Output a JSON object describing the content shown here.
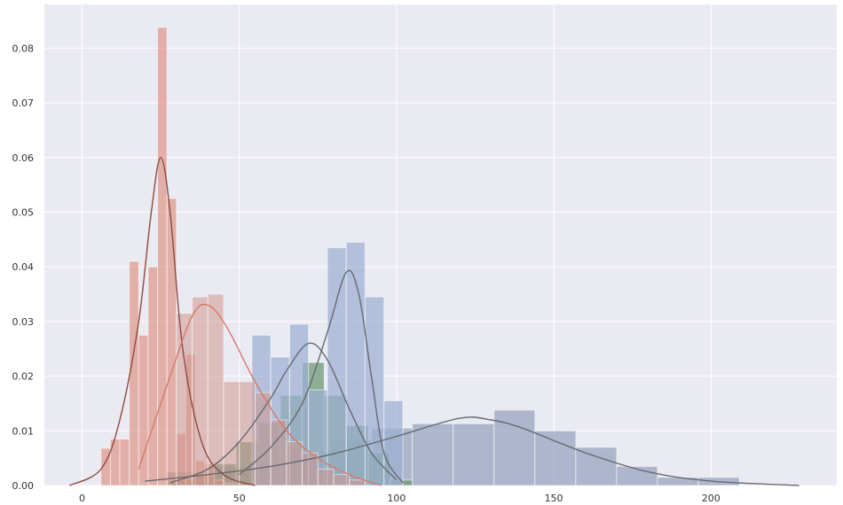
{
  "chart_data": {
    "type": "histogram",
    "title": "",
    "xlabel": "",
    "ylabel": "",
    "xlim": [
      -12,
      240
    ],
    "ylim": [
      0,
      0.088
    ],
    "grid": true,
    "legend": "none",
    "x_ticks": [
      "0",
      "50",
      "100",
      "150",
      "200"
    ],
    "x_tick_values": [
      0,
      50,
      100,
      150,
      200
    ],
    "y_ticks": [
      "0.00",
      "0.01",
      "0.02",
      "0.03",
      "0.04",
      "0.05",
      "0.06",
      "0.07",
      "0.08"
    ],
    "y_tick_values": [
      0,
      0.01,
      0.02,
      0.03,
      0.04,
      0.05,
      0.06,
      0.07,
      0.08
    ],
    "colors": {
      "background": "#eaeaf2",
      "grid": "#ffffff",
      "series_1": "#96a2bd",
      "series_2": "#6f9a78",
      "series_3": "#9cb0d2",
      "series_4": "#dd8a7b",
      "series_5": "#d0978f",
      "kde_dark": "#666a70",
      "kde_brown": "#8e4a40",
      "kde_salmon": "#d57a68"
    },
    "series": [
      {
        "edges": [
          27,
          40,
          53,
          66,
          79,
          92,
          105,
          118,
          131,
          144,
          157,
          170,
          183,
          196
        ],
        "heights": [
          0.0025,
          0.0035,
          0.0045,
          0.0065,
          0.0085,
          0.0105,
          0.0113,
          0.0113,
          0.0138,
          0.01,
          0.007,
          0.0035,
          0.0015,
          0.0015
        ],
        "kde": [
          [
            20,
            0.0008
          ],
          [
            40,
            0.002
          ],
          [
            60,
            0.0035
          ],
          [
            80,
            0.0058
          ],
          [
            100,
            0.009
          ],
          [
            120,
            0.0123
          ],
          [
            130,
            0.012
          ],
          [
            140,
            0.0105
          ],
          [
            160,
            0.006
          ],
          [
            180,
            0.0025
          ],
          [
            200,
            0.0008
          ],
          [
            228,
            0.0
          ]
        ]
      },
      {
        "edges": [
          28,
          35,
          42,
          49,
          56,
          63,
          70,
          77,
          84,
          91,
          98
        ],
        "heights": [
          0.001,
          0.002,
          0.004,
          0.008,
          0.0115,
          0.0165,
          0.0225,
          0.0165,
          0.011,
          0.006,
          0.001
        ],
        "kde": [
          [
            28,
            0.0005
          ],
          [
            40,
            0.003
          ],
          [
            50,
            0.008
          ],
          [
            60,
            0.016
          ],
          [
            65,
            0.021
          ],
          [
            72,
            0.026
          ],
          [
            78,
            0.023
          ],
          [
            85,
            0.014
          ],
          [
            92,
            0.006
          ],
          [
            100,
            0.001
          ]
        ]
      },
      {
        "edges": [
          54,
          60,
          66,
          72,
          78,
          84,
          90,
          96
        ],
        "heights": [
          0.0275,
          0.0235,
          0.0295,
          0.0175,
          0.0435,
          0.0445,
          0.0345,
          0.0155
        ],
        "kde": [
          [
            50,
            0.002
          ],
          [
            60,
            0.007
          ],
          [
            70,
            0.015
          ],
          [
            78,
            0.028
          ],
          [
            84,
            0.039
          ],
          [
            88,
            0.035
          ],
          [
            92,
            0.02
          ],
          [
            96,
            0.006
          ],
          [
            102,
            0.0005
          ]
        ]
      },
      {
        "edges": [
          6,
          9,
          12,
          15,
          18,
          21,
          24,
          27,
          30,
          33,
          36,
          39,
          42,
          45
        ],
        "heights": [
          0.0068,
          0.0085,
          0.0085,
          0.041,
          0.0275,
          0.04,
          0.0838,
          0.0525,
          0.0095,
          0.024,
          0.0045,
          0.004,
          0.001,
          0.0005
        ],
        "kde": [
          [
            -4,
            0.0
          ],
          [
            6,
            0.003
          ],
          [
            12,
            0.012
          ],
          [
            18,
            0.03
          ],
          [
            22,
            0.05
          ],
          [
            25,
            0.06
          ],
          [
            28,
            0.05
          ],
          [
            32,
            0.025
          ],
          [
            38,
            0.008
          ],
          [
            45,
            0.002
          ],
          [
            55,
            0.0
          ]
        ]
      },
      {
        "edges": [
          30,
          35,
          40,
          45,
          50,
          55,
          60,
          65,
          70,
          75,
          80,
          85
        ],
        "heights": [
          0.0315,
          0.0345,
          0.035,
          0.019,
          0.019,
          0.017,
          0.012,
          0.008,
          0.006,
          0.003,
          0.002,
          0.001
        ],
        "kde": [
          [
            18,
            0.003
          ],
          [
            28,
            0.02
          ],
          [
            35,
            0.031
          ],
          [
            40,
            0.033
          ],
          [
            46,
            0.029
          ],
          [
            55,
            0.019
          ],
          [
            65,
            0.01
          ],
          [
            75,
            0.005
          ],
          [
            85,
            0.002
          ],
          [
            95,
            0.0
          ]
        ]
      }
    ]
  }
}
